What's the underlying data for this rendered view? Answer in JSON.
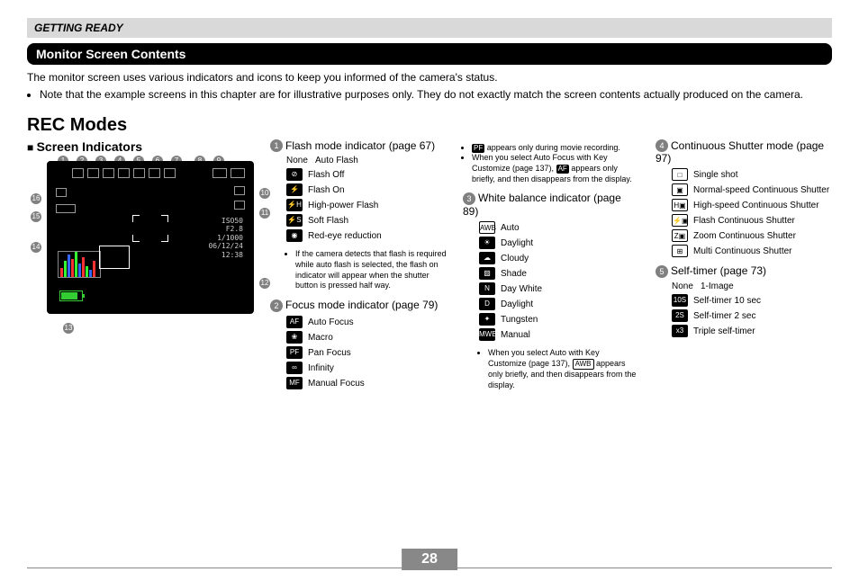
{
  "header": {
    "section": "GETTING READY"
  },
  "titleBar": "Monitor Screen Contents",
  "intro": {
    "line1": "The monitor screen uses various indicators and icons to keep you informed of the camera's status.",
    "bullet": "Note that the example screens in this chapter are for illustrative purposes only. They do not exactly match the screen contents actually produced on the camera."
  },
  "recTitle": "REC Modes",
  "screenIndicators": "Screen Indicators",
  "screenText": {
    "iso": "ISO50",
    "f": "F2.8",
    "shutter": "1/1000",
    "date": "06/12/24",
    "time": "12:38"
  },
  "col2": {
    "flash": {
      "num": "1",
      "title": "Flash mode indicator (page 67)",
      "items": [
        {
          "icon": "None",
          "label": "Auto Flash",
          "noicon": true
        },
        {
          "icon": "⊘",
          "label": "Flash Off"
        },
        {
          "icon": "⚡",
          "label": "Flash On"
        },
        {
          "icon": "⚡H",
          "label": "High-power Flash"
        },
        {
          "icon": "⚡S",
          "label": "Soft Flash"
        },
        {
          "icon": "◉",
          "label": "Red-eye reduction"
        }
      ],
      "note": "If the camera detects that flash is required while auto flash is selected, the flash on indicator will appear when the shutter button is pressed half way."
    },
    "focus": {
      "num": "2",
      "title": "Focus mode indicator (page 79)",
      "items": [
        {
          "icon": "AF",
          "label": "Auto Focus"
        },
        {
          "icon": "❀",
          "label": "Macro"
        },
        {
          "icon": "PF",
          "label": "Pan Focus"
        },
        {
          "icon": "∞",
          "label": "Infinity"
        },
        {
          "icon": "MF",
          "label": "Manual Focus"
        }
      ]
    }
  },
  "col3": {
    "pfNote1": "appears only during movie recording.",
    "pfNote2a": "When you select Auto Focus with Key Customize (page 137),",
    "pfNote2b": "appears only briefly, and then disappears from the display.",
    "wb": {
      "num": "3",
      "title": "White balance indicator (page 89)",
      "items": [
        {
          "icon": "AWB",
          "label": "Auto",
          "outline": true
        },
        {
          "icon": "☀",
          "label": "Daylight"
        },
        {
          "icon": "☁",
          "label": "Cloudy"
        },
        {
          "icon": "▨",
          "label": "Shade"
        },
        {
          "icon": "N",
          "label": "Day White"
        },
        {
          "icon": "D",
          "label": "Daylight"
        },
        {
          "icon": "✦",
          "label": "Tungsten"
        },
        {
          "icon": "MWB",
          "label": "Manual"
        }
      ],
      "note1": "When you select Auto with Key Customize (page 137),",
      "note2": "appears only briefly, and then disappears from the display."
    }
  },
  "col4": {
    "cont": {
      "num": "4",
      "title": "Continuous Shutter mode (page 97)",
      "items": [
        {
          "icon": "□",
          "label": "Single shot",
          "outline": true
        },
        {
          "icon": "▣",
          "label": "Normal-speed Continuous Shutter",
          "outline": true
        },
        {
          "icon": "H▣",
          "label": "High-speed Continuous Shutter",
          "outline": true
        },
        {
          "icon": "⚡▣",
          "label": "Flash Continuous Shutter",
          "outline": true
        },
        {
          "icon": "Z▣",
          "label": "Zoom Continuous Shutter",
          "outline": true
        },
        {
          "icon": "⊞",
          "label": "Multi Continuous Shutter",
          "outline": true
        }
      ]
    },
    "timer": {
      "num": "5",
      "title": "Self-timer (page 73)",
      "items": [
        {
          "icon": "None",
          "label": "1-Image",
          "noicon": true
        },
        {
          "icon": "10S",
          "label": "Self-timer 10 sec"
        },
        {
          "icon": "2S",
          "label": "Self-timer 2 sec"
        },
        {
          "icon": "x3",
          "label": "Triple self-timer"
        }
      ]
    }
  },
  "pageNumber": "28",
  "callouts": [
    "1",
    "2",
    "3",
    "4",
    "5",
    "6",
    "7",
    "8",
    "9",
    "10",
    "11",
    "12",
    "13",
    "14",
    "15",
    "16"
  ]
}
